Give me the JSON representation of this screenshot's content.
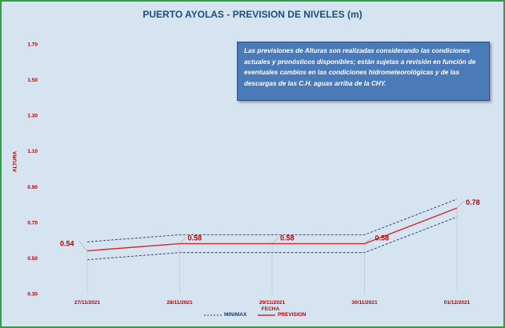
{
  "title": "PUERTO AYOLAS - PREVISION DE NIVELES (m)",
  "note": "Las previsiones de Alturas son realizadas considerando las condiciones actuales y pronósticos disponibles; están sujetas a revisión en función de eventuales cambios en las condiciones hidrometeorológicas y de las descargas de las C.H. aguas arriba de la CHY.",
  "legend": {
    "minmax": "MIN/MAX",
    "prevision": "PREVISION"
  },
  "colors": {
    "background": "#d6e3f1",
    "border": "#2f9e44",
    "prevision": "#d12b2b",
    "minmax": "#1f3864",
    "note_box": "#4a7ab8",
    "label": "#c00000"
  },
  "chart_data": {
    "type": "line",
    "title": "PUERTO AYOLAS - PREVISION DE NIVELES (m)",
    "xlabel": "FECHA",
    "ylabel": "ALTURA",
    "ylim": [
      0.3,
      1.7
    ],
    "yticks": [
      "0.30",
      "0.50",
      "0.70",
      "0.90",
      "1.10",
      "1.30",
      "1.50",
      "1.70"
    ],
    "categories": [
      "27/11/2021",
      "28/11/2021",
      "29/11/2021",
      "30/11/2021",
      "01/12/2021"
    ],
    "series": [
      {
        "name": "PREVISION",
        "values": [
          0.54,
          0.58,
          0.58,
          0.58,
          0.78
        ],
        "labels": [
          "0.54",
          "0.58",
          "0.58",
          "0.58",
          "0.78"
        ]
      },
      {
        "name": "MIN/MAX",
        "role": "max",
        "values": [
          0.59,
          0.63,
          0.63,
          0.63,
          0.83
        ]
      },
      {
        "name": "MIN/MAX",
        "role": "min",
        "values": [
          0.49,
          0.53,
          0.53,
          0.53,
          0.73
        ]
      }
    ],
    "grid": false,
    "legend_position": "bottom"
  }
}
